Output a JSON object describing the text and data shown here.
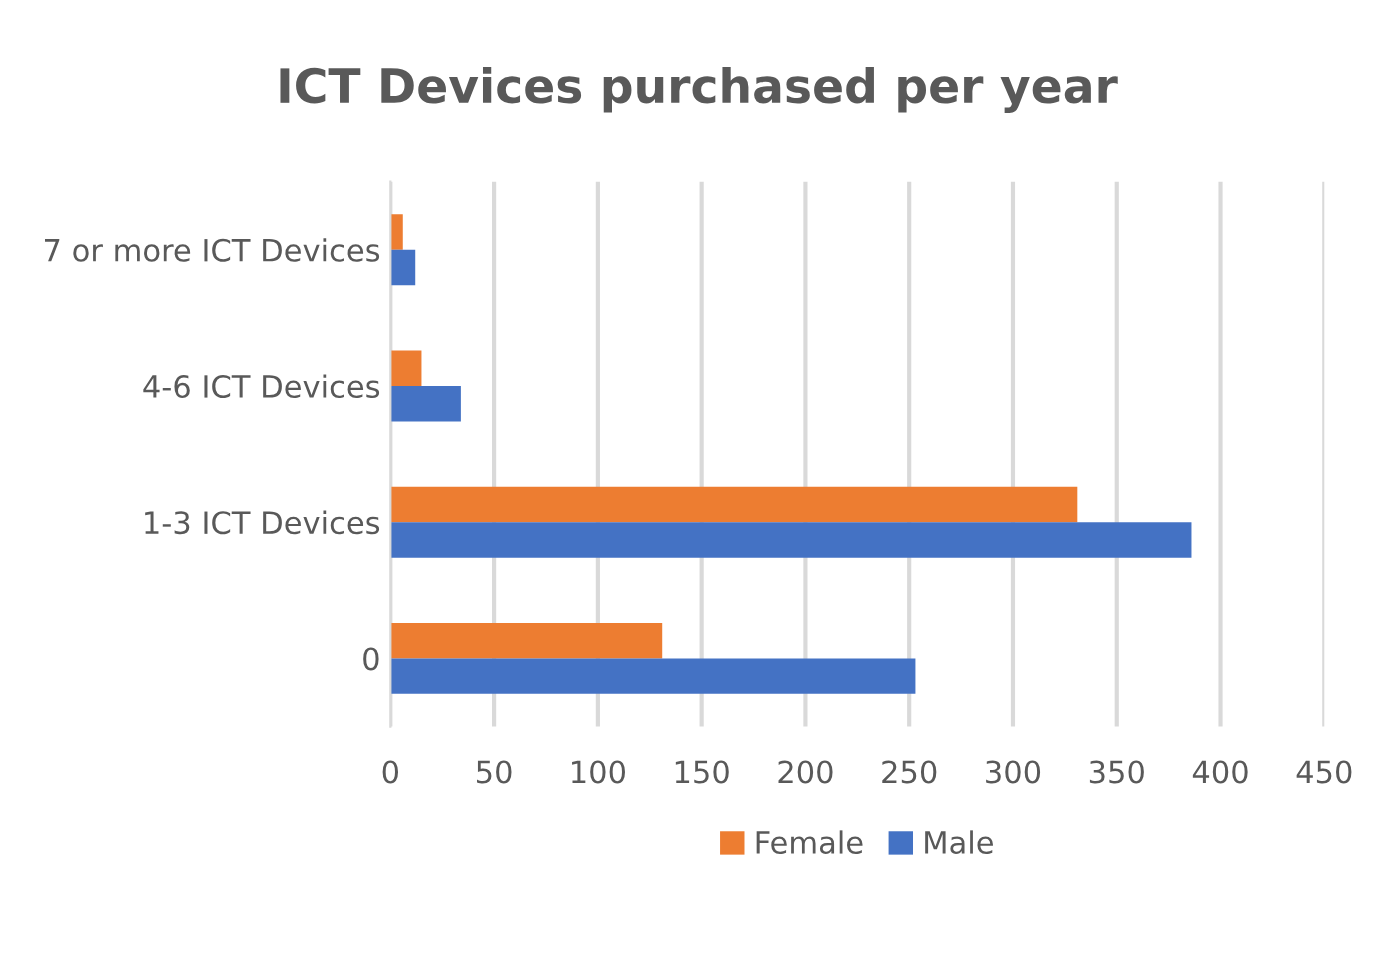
{
  "chart_data": {
    "type": "bar",
    "orientation": "horizontal",
    "title": "ICT Devices purchased per year",
    "categories": [
      "7 or more ICT Devices",
      "4-6 ICT Devices",
      "1-3 ICT Devices",
      "0"
    ],
    "series": [
      {
        "name": "Female",
        "color": "#ed7d31",
        "values": [
          6,
          15,
          331,
          131
        ]
      },
      {
        "name": "Male",
        "color": "#4472c4",
        "values": [
          12,
          34,
          386,
          253
        ]
      }
    ],
    "xlim": [
      0,
      450
    ],
    "xticks": [
      0,
      50,
      100,
      150,
      200,
      250,
      300,
      350,
      400,
      450
    ],
    "grid": "x",
    "legend": "bottom"
  }
}
